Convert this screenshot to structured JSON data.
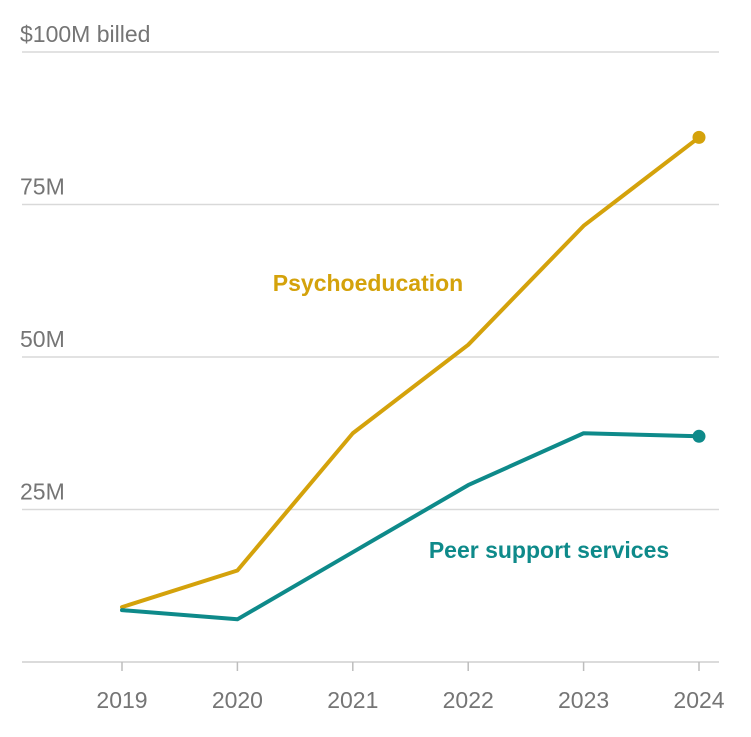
{
  "chart_data": {
    "type": "line",
    "title": "",
    "xlabel": "",
    "ylabel": "",
    "x": [
      2019,
      2020,
      2021,
      2022,
      2023,
      2024
    ],
    "ylim": [
      0,
      100
    ],
    "y_ticks": [
      {
        "value": 100,
        "label": "$100M billed"
      },
      {
        "value": 75,
        "label": "75M"
      },
      {
        "value": 50,
        "label": "50M"
      },
      {
        "value": 25,
        "label": "25M"
      }
    ],
    "x_tick_labels": [
      "2019",
      "2020",
      "2021",
      "2022",
      "2023",
      "2024"
    ],
    "grid": true,
    "series": [
      {
        "name": "Psychoeducation",
        "color": "#d4a20b",
        "values": [
          9,
          15,
          37.5,
          52,
          71.5,
          86
        ],
        "end_marker": true
      },
      {
        "name": "Peer support services",
        "color": "#0e8a8a",
        "values": [
          8.5,
          7,
          18,
          29,
          37.5,
          37
        ]
      }
    ]
  }
}
